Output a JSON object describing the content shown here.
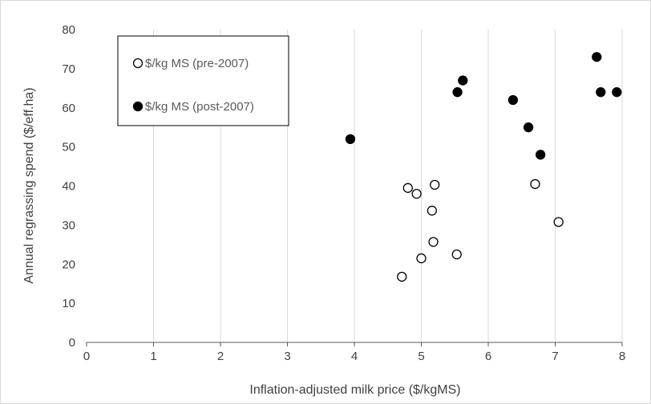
{
  "chart_data": {
    "type": "scatter",
    "title": "",
    "xlabel": "Inflation-adjusted milk price ($/kgMS)",
    "ylabel": "Annual regrassing spend ($/eff.ha)",
    "xlim": [
      0,
      8
    ],
    "ylim": [
      0,
      80
    ],
    "xticks": [
      "0",
      "1",
      "2",
      "3",
      "4",
      "5",
      "6",
      "7",
      "8"
    ],
    "yticks": [
      "0",
      "10",
      "20",
      "30",
      "40",
      "50",
      "60",
      "70",
      "80"
    ],
    "grid": "vertical",
    "legend_position": "top-left",
    "series": [
      {
        "name": "$/kg MS (pre-2007)",
        "marker": "open-circle",
        "color": "#000000",
        "points": [
          {
            "x": 4.71,
            "y": 16.8
          },
          {
            "x": 4.8,
            "y": 39.5
          },
          {
            "x": 4.93,
            "y": 38.0
          },
          {
            "x": 5.0,
            "y": 21.5
          },
          {
            "x": 5.16,
            "y": 33.7
          },
          {
            "x": 5.18,
            "y": 25.7
          },
          {
            "x": 5.2,
            "y": 40.3
          },
          {
            "x": 5.53,
            "y": 22.5
          },
          {
            "x": 6.7,
            "y": 40.5
          },
          {
            "x": 7.05,
            "y": 30.8
          }
        ]
      },
      {
        "name": "$/kg MS (post-2007)",
        "marker": "filled-circle",
        "color": "#000000",
        "points": [
          {
            "x": 3.94,
            "y": 52.0
          },
          {
            "x": 5.54,
            "y": 64.0
          },
          {
            "x": 5.62,
            "y": 67.0
          },
          {
            "x": 6.37,
            "y": 62.0
          },
          {
            "x": 6.6,
            "y": 55.0
          },
          {
            "x": 6.78,
            "y": 48.0
          },
          {
            "x": 7.62,
            "y": 73.0
          },
          {
            "x": 7.68,
            "y": 64.0
          },
          {
            "x": 7.92,
            "y": 64.0
          }
        ]
      }
    ]
  }
}
